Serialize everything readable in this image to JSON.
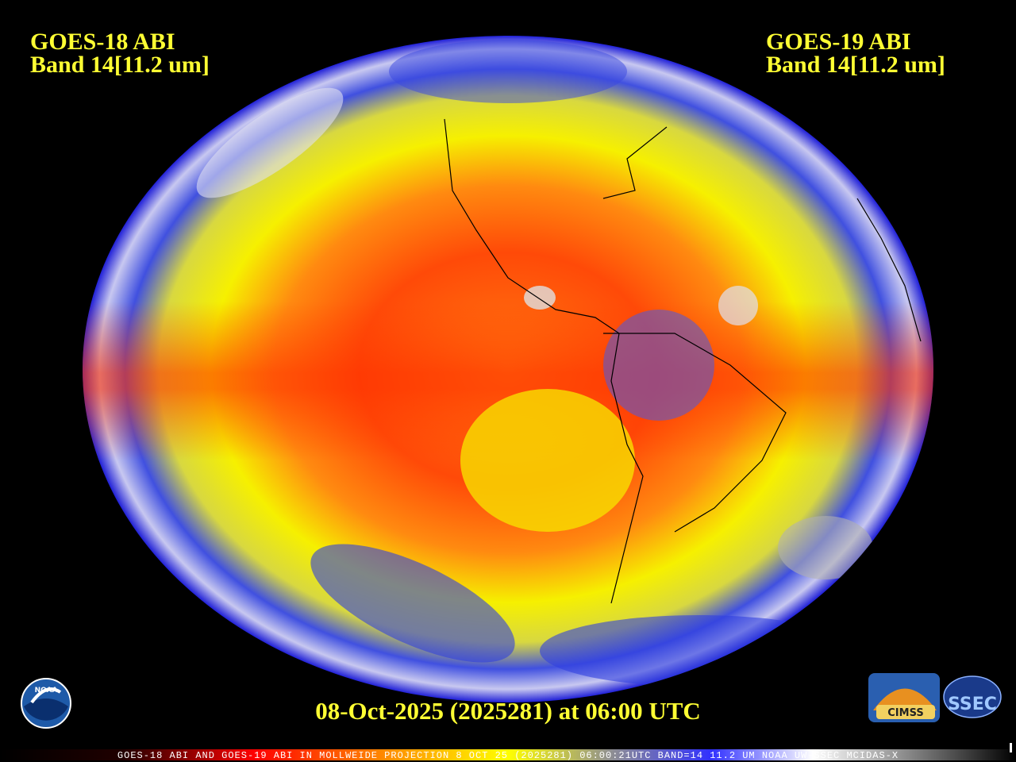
{
  "left_label": {
    "line1": "GOES-18 ABI",
    "line2": "Band 14[11.2 um]"
  },
  "right_label": {
    "line1": "GOES-19 ABI",
    "line2": "Band 14[11.2 um]"
  },
  "date_label": "08-Oct-2025 (2025281) at 06:00 UTC",
  "caption": "GOES-18 ABI AND GOES-19 ABI IN MOLLWEIDE PROJECTION 8 OCT 25 (2025281) 06:00:21UTC BAND=14 11.2 UM NOAA UW-SSEC MCIDAS-X",
  "logos": [
    "NOAA",
    "CIMSS",
    "SSEC"
  ]
}
